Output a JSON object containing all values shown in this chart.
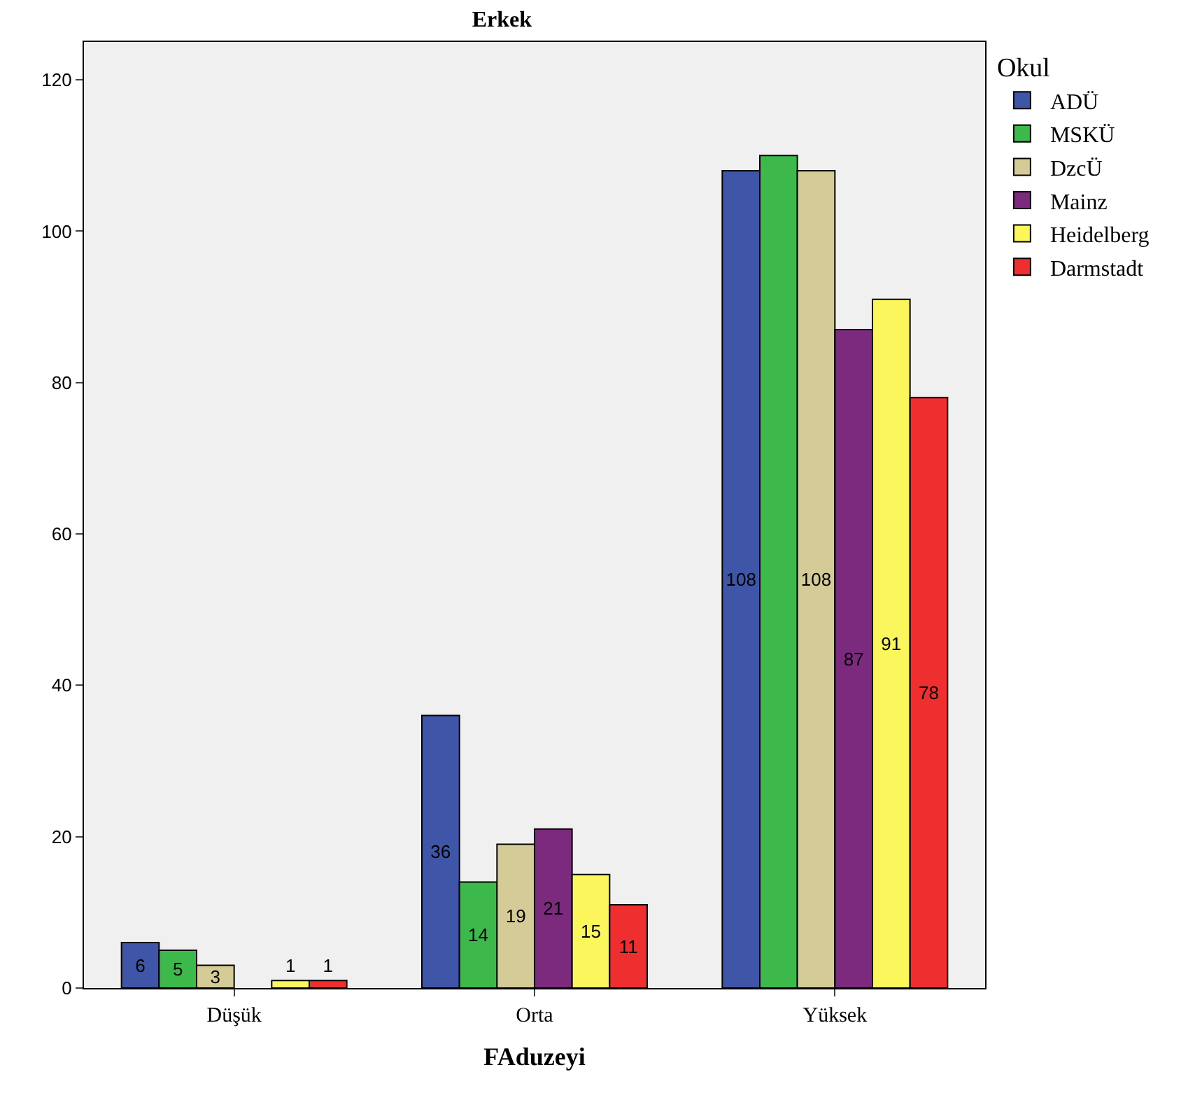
{
  "chart_data": {
    "type": "bar",
    "title": "Erkek",
    "xlabel": "FAduzeyi",
    "legend_title": "Okul",
    "legend": "right",
    "categories": [
      "Düşük",
      "Orta",
      "Yüksek"
    ],
    "ylim": [
      0,
      125
    ],
    "yticks": [
      0,
      20,
      40,
      60,
      80,
      100,
      120
    ],
    "grid": false,
    "series": [
      {
        "name": "ADÜ",
        "color": "#3f56a8",
        "values": [
          6,
          36,
          108
        ],
        "value_labels": [
          "6",
          "36",
          "108"
        ]
      },
      {
        "name": "MSKÜ",
        "color": "#3cb94a",
        "values": [
          5,
          14,
          110
        ],
        "value_labels": [
          "5",
          "14",
          null
        ]
      },
      {
        "name": "DzcÜ",
        "color": "#d4cb96",
        "values": [
          3,
          19,
          108
        ],
        "value_labels": [
          "3",
          "19",
          "108"
        ]
      },
      {
        "name": "Mainz",
        "color": "#7b2a7e",
        "values": [
          null,
          21,
          87
        ],
        "value_labels": [
          null,
          "21",
          "87"
        ]
      },
      {
        "name": "Heidelberg",
        "color": "#fbf65b",
        "values": [
          1,
          15,
          91
        ],
        "value_labels": [
          "1",
          "15",
          "91"
        ]
      },
      {
        "name": "Darmstadt",
        "color": "#ee2e2f",
        "values": [
          1,
          11,
          78
        ],
        "value_labels": [
          "1",
          "11",
          "78"
        ]
      }
    ]
  }
}
